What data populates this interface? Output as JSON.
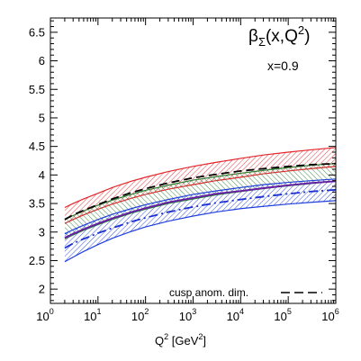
{
  "chart_data": {
    "type": "line",
    "title": {
      "main": "β",
      "sub": "Σ",
      "args": "(x,Q",
      "sup": "2",
      "close": ")"
    },
    "annotation": "x=0.9",
    "xlabel": {
      "text": "Q",
      "sup": "2",
      "unit": " [GeV",
      "unit_sup": "2",
      "close": "]"
    },
    "ylabel": "",
    "x_scale": "log",
    "xlim": [
      1,
      1000000
    ],
    "ylim": [
      1.75,
      6.75
    ],
    "x_ticks": [
      {
        "base": "10",
        "exp": "0",
        "value": 1
      },
      {
        "base": "10",
        "exp": "1",
        "value": 10
      },
      {
        "base": "10",
        "exp": "2",
        "value": 100
      },
      {
        "base": "10",
        "exp": "3",
        "value": 1000
      },
      {
        "base": "10",
        "exp": "4",
        "value": 10000
      },
      {
        "base": "10",
        "exp": "5",
        "value": 100000
      },
      {
        "base": "10",
        "exp": "6",
        "value": 1000000
      }
    ],
    "y_ticks": [
      "2",
      "2.5",
      "3",
      "3.5",
      "4",
      "4.5",
      "5",
      "5.5",
      "6",
      "6.5"
    ],
    "grid": false,
    "legend": {
      "position": "bottom-right",
      "entries": [
        {
          "label": "cusp anom. dim.",
          "style": "dashed",
          "color": "#000000"
        }
      ]
    },
    "x": [
      2,
      3,
      5,
      10,
      20,
      50,
      100,
      300,
      1000,
      3000,
      10000,
      30000,
      100000,
      300000,
      1000000
    ],
    "bands": [
      {
        "color": "#e3262b",
        "hatch": "diag-down",
        "upper": [
          3.43,
          3.5,
          3.58,
          3.68,
          3.78,
          3.89,
          3.96,
          4.06,
          4.15,
          4.22,
          4.29,
          4.35,
          4.4,
          4.44,
          4.48
        ],
        "lower": [
          3.15,
          3.22,
          3.3,
          3.4,
          3.49,
          3.59,
          3.66,
          3.75,
          3.83,
          3.9,
          3.96,
          4.02,
          4.07,
          4.11,
          4.15
        ]
      },
      {
        "color": "#2e7d32",
        "hatch": "diag-up",
        "upper": [
          3.22,
          3.29,
          3.37,
          3.47,
          3.56,
          3.66,
          3.73,
          3.82,
          3.91,
          3.97,
          4.03,
          4.08,
          4.13,
          4.17,
          4.2
        ],
        "lower": [
          2.88,
          2.95,
          3.03,
          3.13,
          3.22,
          3.33,
          3.4,
          3.5,
          3.58,
          3.65,
          3.71,
          3.76,
          3.81,
          3.85,
          3.89
        ]
      },
      {
        "color": "#1f3fdc",
        "hatch": "diag-down",
        "upper": [
          2.97,
          3.04,
          3.12,
          3.22,
          3.31,
          3.41,
          3.48,
          3.57,
          3.66,
          3.72,
          3.78,
          3.83,
          3.87,
          3.9,
          3.93
        ],
        "lower": [
          2.48,
          2.56,
          2.66,
          2.78,
          2.89,
          3.01,
          3.09,
          3.19,
          3.28,
          3.35,
          3.41,
          3.45,
          3.49,
          3.52,
          3.55
        ]
      }
    ],
    "lines": [
      {
        "color": "#000000",
        "style": "dashed",
        "values": [
          3.22,
          3.3,
          3.38,
          3.48,
          3.58,
          3.69,
          3.76,
          3.86,
          3.95,
          4.01,
          4.07,
          4.11,
          4.15,
          4.18,
          4.2
        ]
      },
      {
        "color": "#6a1aa6",
        "style": "solid",
        "values": [
          2.9,
          2.97,
          3.05,
          3.15,
          3.24,
          3.35,
          3.42,
          3.52,
          3.6,
          3.67,
          3.72,
          3.77,
          3.82,
          3.86,
          3.89
        ]
      },
      {
        "color": "#1a2fd0",
        "style": "dashdot",
        "values": [
          2.72,
          2.8,
          2.88,
          2.98,
          3.07,
          3.18,
          3.25,
          3.35,
          3.44,
          3.51,
          3.57,
          3.62,
          3.67,
          3.71,
          3.74
        ]
      }
    ]
  }
}
